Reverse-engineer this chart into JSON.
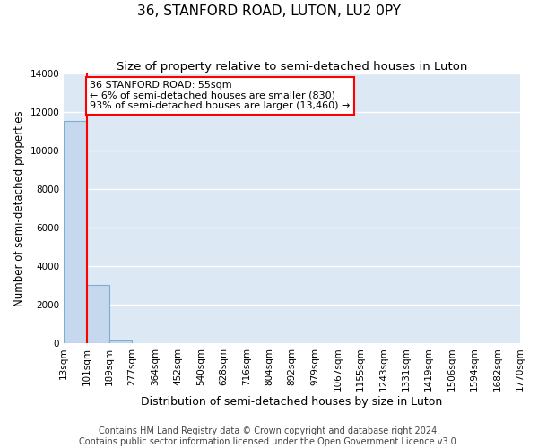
{
  "title": "36, STANFORD ROAD, LUTON, LU2 0PY",
  "subtitle": "Size of property relative to semi-detached houses in Luton",
  "xlabel": "Distribution of semi-detached houses by size in Luton",
  "ylabel": "Number of semi-detached properties",
  "footer_line1": "Contains HM Land Registry data © Crown copyright and database right 2024.",
  "footer_line2": "Contains public sector information licensed under the Open Government Licence v3.0.",
  "bin_labels": [
    "13sqm",
    "101sqm",
    "189sqm",
    "277sqm",
    "364sqm",
    "452sqm",
    "540sqm",
    "628sqm",
    "716sqm",
    "804sqm",
    "892sqm",
    "979sqm",
    "1067sqm",
    "1155sqm",
    "1243sqm",
    "1331sqm",
    "1419sqm",
    "1506sqm",
    "1594sqm",
    "1682sqm",
    "1770sqm"
  ],
  "bar_values": [
    11500,
    3000,
    150,
    0,
    0,
    0,
    0,
    0,
    0,
    0,
    0,
    0,
    0,
    0,
    0,
    0,
    0,
    0,
    0,
    0
  ],
  "bar_color": "#c5d8ed",
  "bar_edge_color": "#7aafd4",
  "annotation_line1": "36 STANFORD ROAD: 55sqm",
  "annotation_line2": "← 6% of semi-detached houses are smaller (830)",
  "annotation_line3": "93% of semi-detached houses are larger (13,460) →",
  "annotation_box_color": "white",
  "annotation_box_edge_color": "red",
  "red_line_color": "red",
  "ylim": [
    0,
    14000
  ],
  "yticks": [
    0,
    2000,
    4000,
    6000,
    8000,
    10000,
    12000,
    14000
  ],
  "background_color": "#dde8f5",
  "grid_color": "white",
  "title_fontsize": 11,
  "subtitle_fontsize": 9.5,
  "ylabel_fontsize": 8.5,
  "xlabel_fontsize": 9,
  "tick_fontsize": 7.5,
  "annotation_fontsize": 8,
  "footer_fontsize": 7
}
